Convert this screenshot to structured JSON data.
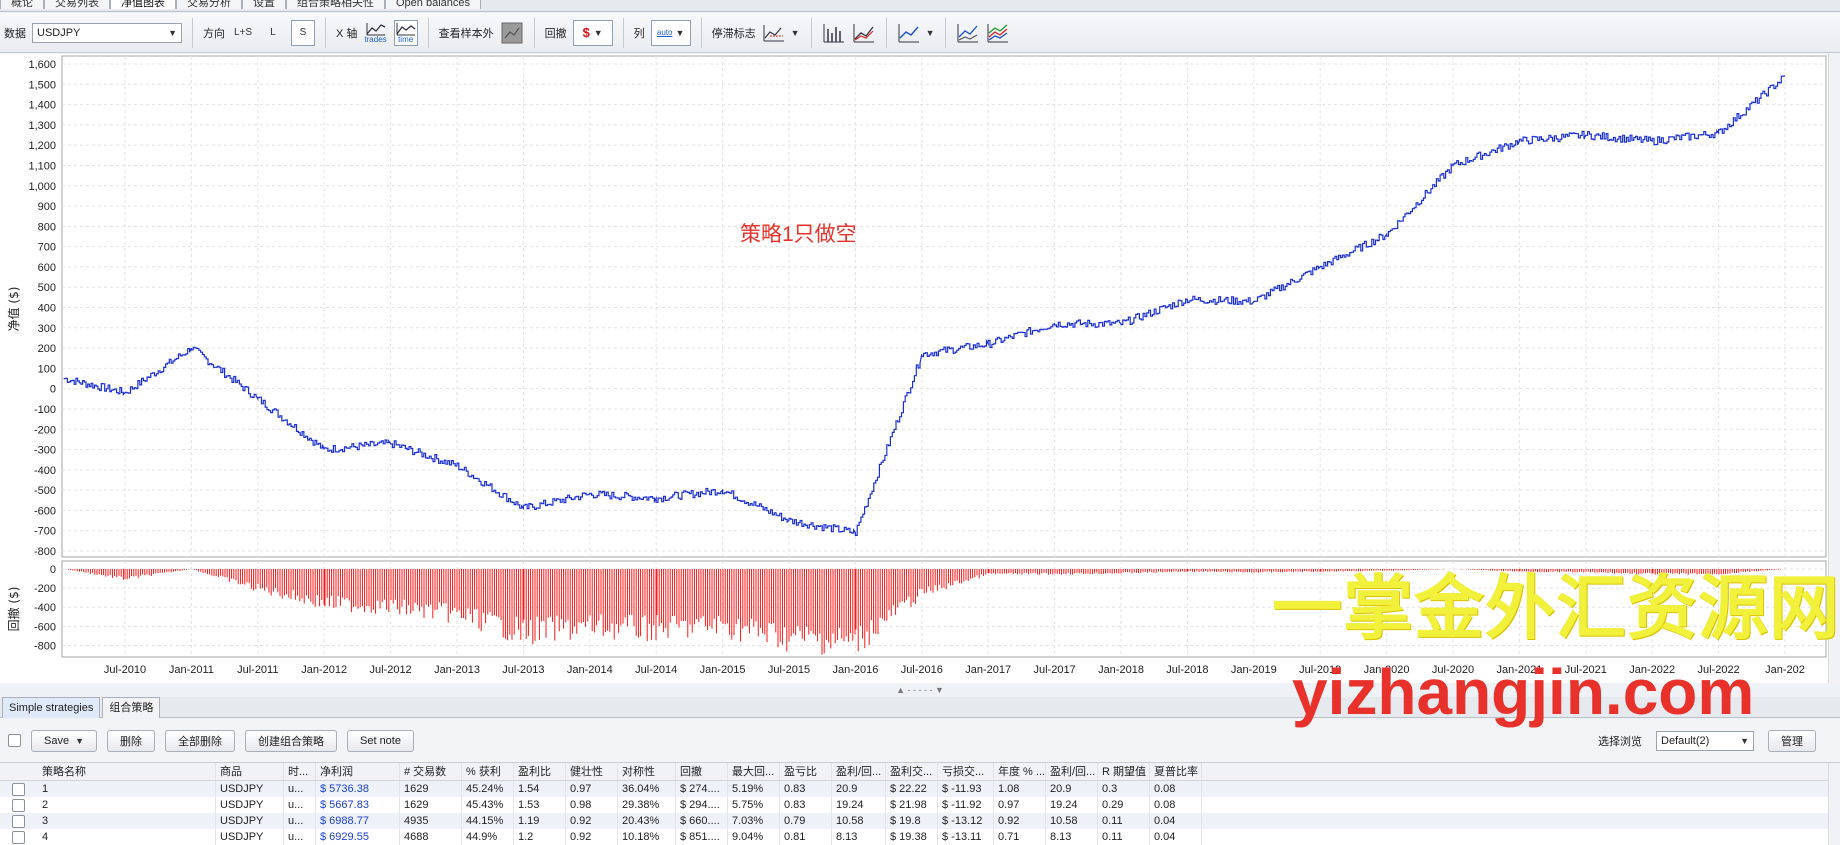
{
  "top_tabs": [
    "概论",
    "交易列表",
    "净值图表",
    "交易分析",
    "设置",
    "组合策略相关性",
    "Open balances"
  ],
  "top_active_tab": 2,
  "toolbar": {
    "data_label": "数据",
    "symbol": "USDJPY",
    "direction_label": "方向",
    "direction_all": "L+S",
    "direction_long": "L",
    "direction_short": "S",
    "xaxis_label": "X 轴",
    "xaxis_trades": "trades",
    "xaxis_time": "time",
    "oos_label": "查看样本外",
    "drawdown_label": "回撤",
    "column_label": "列",
    "column_auto": "auto",
    "stagnation_label": "停滞标志"
  },
  "chart": {
    "y_label": "净值 ($)",
    "dd_label": "回撤 ($)",
    "annotation": "策略1只做空",
    "line_color": "#1c2fd6",
    "dd_color": "#ff0000",
    "y_ticks": [
      "1,600",
      "1,500",
      "1,400",
      "1,300",
      "1,200",
      "1,100",
      "1,000",
      "900",
      "800",
      "700",
      "600",
      "500",
      "400",
      "300",
      "200",
      "100",
      "0",
      "-100",
      "-200",
      "-300",
      "-400",
      "-500",
      "-600",
      "-700",
      "-800"
    ],
    "dd_ticks": [
      "0",
      "-200",
      "-400",
      "-600",
      "-800"
    ],
    "x_ticks": [
      "Jul-2010",
      "Jan-2011",
      "Jul-2011",
      "Jan-2012",
      "Jul-2012",
      "Jan-2013",
      "Jul-2013",
      "Jan-2014",
      "Jul-2014",
      "Jan-2015",
      "Jul-2015",
      "Jan-2016",
      "Jul-2016",
      "Jan-2017",
      "Jul-2017",
      "Jan-2018",
      "Jul-2018",
      "Jan-2019",
      "Jul-2019",
      "Jan-2020",
      "Jul-2020",
      "Jan-2021",
      "Jul-2021",
      "Jan-2022",
      "Jul-2022",
      "Jan-202"
    ]
  },
  "chart_data": {
    "type": "line",
    "x": [
      "Jan-2010",
      "Jul-2010",
      "Jan-2011",
      "Jul-2011",
      "Jan-2012",
      "Jul-2012",
      "Jan-2013",
      "Jul-2013",
      "Jan-2014",
      "Jul-2014",
      "Jan-2015",
      "Jul-2015",
      "Jan-2016",
      "Jul-2016",
      "Jan-2017",
      "Jul-2017",
      "Jan-2018",
      "Jul-2018",
      "Jan-2019",
      "Jul-2019",
      "Jan-2020",
      "Jul-2020",
      "Jan-2021",
      "Jul-2021",
      "Jan-2022",
      "Jul-2022",
      "Jan-2023"
    ],
    "series": [
      {
        "name": "",
        "values": [
          50,
          -20,
          200,
          -50,
          -300,
          -270,
          -380,
          -590,
          -520,
          -540,
          -500,
          -650,
          -710,
          170,
          220,
          320,
          320,
          440,
          430,
          600,
          760,
          1100,
          1220,
          1250,
          1220,
          1260,
          1540
        ]
      }
    ],
    "drawdown": {
      "x": [
        "Jan-2010",
        "Jul-2010",
        "Jan-2011",
        "Jul-2011",
        "Jan-2012",
        "Jul-2012",
        "Jan-2013",
        "Jul-2013",
        "Jan-2014",
        "Jul-2014",
        "Jan-2015",
        "Jul-2015",
        "Jan-2016",
        "Jul-2016",
        "Jan-2017",
        "Jul-2017",
        "Jan-2018",
        "Jul-2018",
        "Jan-2019",
        "Jul-2019",
        "Jan-2020",
        "Jul-2020",
        "Jan-2021",
        "Jul-2021",
        "Jan-2022",
        "Jul-2022",
        "Jan-2023"
      ],
      "values": [
        0,
        -120,
        0,
        -240,
        -420,
        -470,
        -560,
        -780,
        -720,
        -740,
        -700,
        -850,
        -900,
        -300,
        -60,
        -60,
        -50,
        -30,
        -40,
        -30,
        -20,
        0,
        -30,
        -40,
        -60,
        -60,
        0
      ]
    },
    "ylim": [
      -800,
      1600
    ],
    "dd_ylim": [
      -900,
      0
    ]
  },
  "watermark": {
    "line1": "一掌金外汇资源网",
    "line2": "yizhangjin.com"
  },
  "bottom_tabs": [
    "Simple strategies",
    "组合策略"
  ],
  "bottom_toolbar": {
    "save": "Save",
    "delete": "删除",
    "delete_all": "全部删除",
    "create_portfolio": "创建组合策略",
    "set_note": "Set note",
    "select_view_label": "选择浏览",
    "view_value": "Default(2)",
    "manage": "管理"
  },
  "table": {
    "headers": [
      "策略名称",
      "商品",
      "时...",
      "净利润",
      "# 交易数",
      "% 获利",
      "盈利比",
      "健壮性",
      "对称性",
      "回撤",
      "最大回...",
      "盈亏比",
      "盈利/回...",
      "盈利交...",
      "亏损交...",
      "年度 % ...",
      "盈利/回...",
      "R 期望值",
      "夏普比率"
    ],
    "rows": [
      [
        "1",
        "USDJPY",
        "u...",
        "$ 5736.38",
        "1629",
        "45.24%",
        "1.54",
        "0.97",
        "36.04%",
        "$ 274....",
        "5.19%",
        "0.83",
        "20.9",
        "$ 22.22",
        "$ -11.93",
        "1.08",
        "20.9",
        "0.3",
        "0.08"
      ],
      [
        "2",
        "USDJPY",
        "u...",
        "$ 5667.83",
        "1629",
        "45.43%",
        "1.53",
        "0.98",
        "29.38%",
        "$ 294....",
        "5.75%",
        "0.83",
        "19.24",
        "$ 21.98",
        "$ -11.92",
        "0.97",
        "19.24",
        "0.29",
        "0.08"
      ],
      [
        "3",
        "USDJPY",
        "u...",
        "$ 6988.77",
        "4935",
        "44.15%",
        "1.19",
        "0.92",
        "20.43%",
        "$ 660....",
        "7.03%",
        "0.79",
        "10.58",
        "$ 19.8",
        "$ -13.12",
        "0.92",
        "10.58",
        "0.11",
        "0.04"
      ],
      [
        "4",
        "USDJPY",
        "u...",
        "$ 6929.55",
        "4688",
        "44.9%",
        "1.2",
        "0.92",
        "10.18%",
        "$ 851....",
        "9.04%",
        "0.81",
        "8.13",
        "$ 19.38",
        "$ -13.11",
        "0.71",
        "8.13",
        "0.11",
        "0.04"
      ]
    ]
  }
}
